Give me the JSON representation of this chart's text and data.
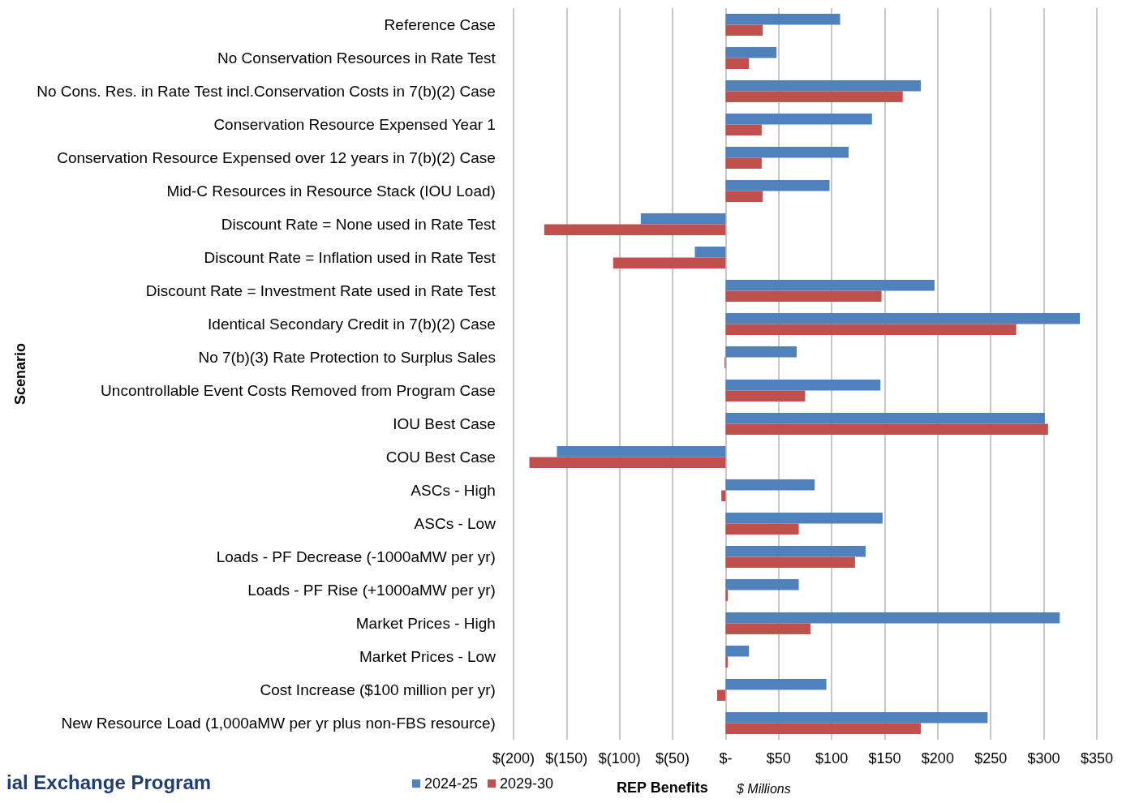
{
  "chart_data": {
    "type": "bar",
    "orientation": "horizontal",
    "title": "ial Exchange Program",
    "xlabel": "REP Benefits",
    "ylabel": "Scenario",
    "annotations": [
      "$ Millions"
    ],
    "categories": [
      "Reference Case",
      "No Conservation Resources in Rate Test",
      "No Cons. Res. in Rate Test incl.Conservation Costs in 7(b)(2) Case",
      "Conservation Resource Expensed Year 1",
      "Conservation Resource Expensed over 12 years in 7(b)(2) Case",
      "Mid-C Resources in Resource Stack (IOU Load)",
      "Discount Rate = None used in Rate Test",
      "Discount Rate = Inflation used in Rate Test",
      "Discount Rate = Investment Rate used in Rate Test",
      "Identical Secondary Credit in 7(b)(2) Case",
      "No 7(b)(3) Rate Protection to Surplus Sales",
      "Uncontrollable Event Costs Removed from Program Case",
      "IOU Best Case",
      "COU Best Case",
      "ASCs - High",
      "ASCs - Low",
      "Loads - PF Decrease (-1000aMW per yr)",
      "Loads - PF Rise (+1000aMW per yr)",
      "Market Prices - High",
      "Market Prices - Low",
      "Cost Increase ($100 million per yr)",
      "New Resource Load (1,000aMW per yr plus non-FBS resource)"
    ],
    "series": [
      {
        "name": "2024-25",
        "color": "#4f81bd",
        "values": [
          108,
          48,
          184,
          138,
          116,
          98,
          -80,
          -29,
          197,
          334,
          67,
          146,
          301,
          -159,
          84,
          148,
          132,
          69,
          315,
          22,
          95,
          247
        ]
      },
      {
        "name": "2029-30",
        "color": "#c0504d",
        "values": [
          35,
          22,
          167,
          34,
          34,
          35,
          -171,
          -106,
          147,
          274,
          -1,
          75,
          304,
          -185,
          -4,
          69,
          122,
          2,
          80,
          2,
          -8,
          184
        ]
      }
    ],
    "xlim": [
      -200,
      350
    ],
    "xticks": [
      {
        "value": -200,
        "label": "$(200)"
      },
      {
        "value": -150,
        "label": "$(150)"
      },
      {
        "value": -100,
        "label": "$(100)"
      },
      {
        "value": -50,
        "label": "$(50)"
      },
      {
        "value": 0,
        "label": "$-"
      },
      {
        "value": 50,
        "label": "$50"
      },
      {
        "value": 100,
        "label": "$100"
      },
      {
        "value": 150,
        "label": "$150"
      },
      {
        "value": 200,
        "label": "$200"
      },
      {
        "value": 250,
        "label": "$250"
      },
      {
        "value": 300,
        "label": "$300"
      },
      {
        "value": 350,
        "label": "$350"
      }
    ],
    "grid": "x",
    "legend": "bottom"
  }
}
